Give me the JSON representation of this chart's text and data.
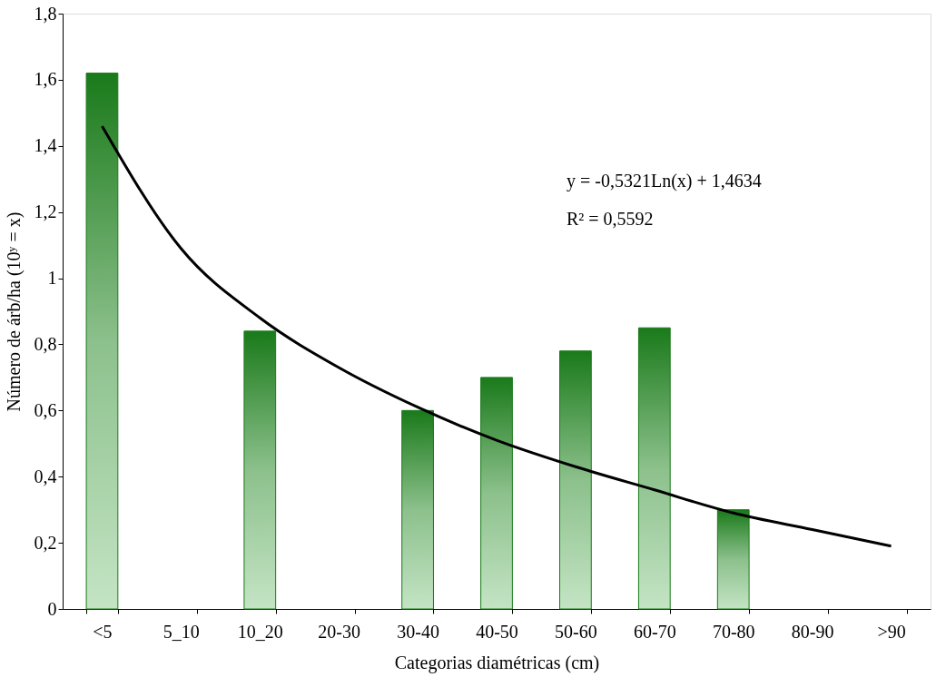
{
  "chart_data": {
    "type": "bar",
    "xlabel": "Categorias diamétricas (cm)",
    "ylabel": "Número de árb/ha (10ʸ = x)",
    "categories": [
      "<5",
      "5_10",
      "10_20",
      "20-30",
      "30-40",
      "40-50",
      "50-60",
      "60-70",
      "70-80",
      "80-90",
      ">90"
    ],
    "series": [
      {
        "color": "#1a7a1a",
        "values": [
          1.62,
          null,
          0.84,
          null,
          0.6,
          0.7,
          0.78,
          0.85,
          0.3,
          null,
          null
        ]
      },
      {
        "type": "line",
        "color": "#000000",
        "values": [
          1.46,
          1.09,
          0.88,
          0.73,
          0.61,
          0.51,
          0.43,
          0.36,
          0.29,
          0.24,
          0.19
        ]
      }
    ],
    "ylim": [
      0,
      1.8
    ],
    "yticks": [
      0,
      {
        "value": 0.2,
        "label": "0,2"
      },
      {
        "value": 0.4,
        "label": "0,4"
      },
      {
        "value": 0.6,
        "label": "0,6"
      },
      {
        "value": 0.8,
        "label": "0,8"
      },
      1,
      {
        "value": 1.2,
        "label": "1,2"
      },
      {
        "value": 1.4,
        "label": "1,4"
      },
      {
        "value": 1.6,
        "label": "1,6"
      },
      {
        "value": 1.8,
        "label": "1,8"
      }
    ],
    "annotations": [
      "y = -0,5321Ln(x) + 1,4634",
      "R² = 0,5592"
    ],
    "grid": false
  }
}
